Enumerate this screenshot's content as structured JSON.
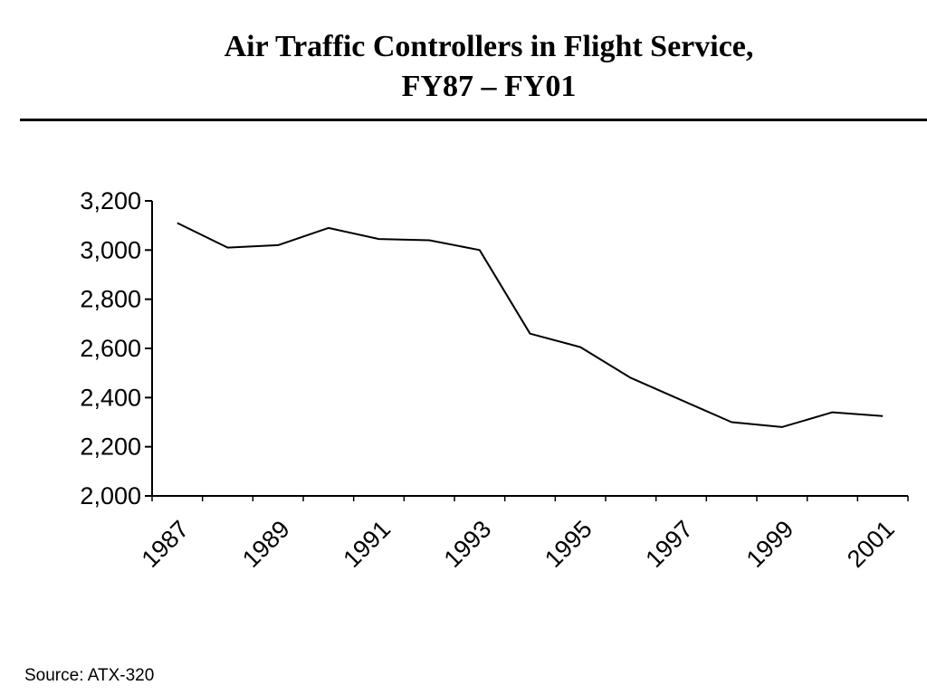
{
  "title_lines": [
    "Air Traffic Controllers in Flight Service,",
    "FY87 – FY01"
  ],
  "source": "Source: ATX-320",
  "chart_data": {
    "type": "line",
    "title": "Air Traffic Controllers in Flight Service, FY87 – FY01",
    "xlabel": "",
    "ylabel": "",
    "x": [
      1987,
      1988,
      1989,
      1990,
      1991,
      1992,
      1993,
      1994,
      1995,
      1996,
      1997,
      1998,
      1999,
      2000,
      2001
    ],
    "x_tick_labels": [
      "1987",
      "1989",
      "1991",
      "1993",
      "1995",
      "1997",
      "1999",
      "2001"
    ],
    "x_tick_values": [
      1987,
      1989,
      1991,
      1993,
      1995,
      1997,
      1999,
      2001
    ],
    "y_tick_labels": [
      "3,200",
      "3,000",
      "2,800",
      "2,600",
      "2,400",
      "2,200",
      "2,000"
    ],
    "y_tick_values": [
      3200,
      3000,
      2800,
      2600,
      2400,
      2200,
      2000
    ],
    "ylim": [
      2000,
      3200
    ],
    "series": [
      {
        "values": [
          3110,
          3010,
          3020,
          3090,
          3045,
          3040,
          3000,
          2660,
          2605,
          2480,
          2390,
          2300,
          2280,
          2340,
          2325
        ]
      }
    ],
    "grid": false,
    "legend": "none",
    "line_color": "#000000"
  }
}
